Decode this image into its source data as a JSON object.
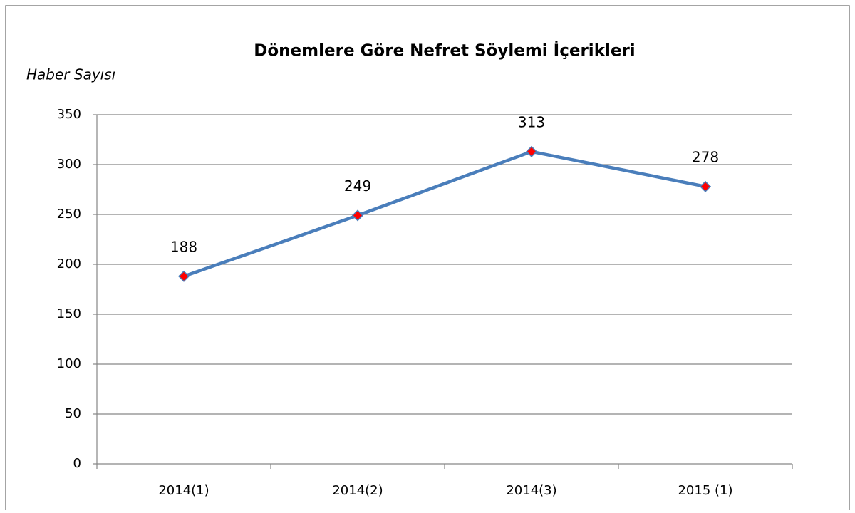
{
  "chart_data": {
    "type": "line",
    "title": "Dönemlere Göre Nefret Söylemi İçerikleri",
    "y_label": "Haber Sayısı",
    "categories": [
      "2014(1)",
      "2014(2)",
      "2014(3)",
      "2015 (1)"
    ],
    "values": [
      188,
      249,
      313,
      278
    ],
    "color": "#4a7ebb",
    "marker_color": "#ff0000",
    "ylim": [
      0,
      350
    ],
    "yticks": [
      0,
      50,
      100,
      150,
      200,
      250,
      300,
      350
    ],
    "grid": true,
    "data_labels": true
  }
}
